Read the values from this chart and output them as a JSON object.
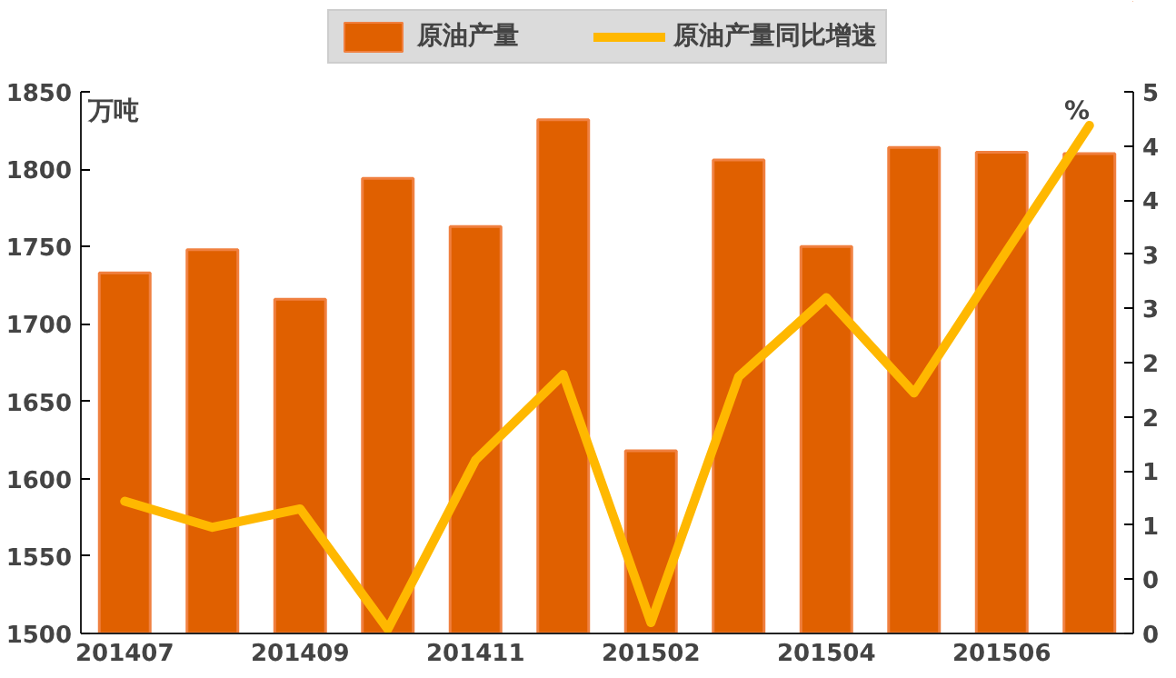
{
  "chart_data": {
    "type": "bar",
    "categories": [
      "201407",
      null,
      "201409",
      null,
      "201411",
      null,
      "201502",
      null,
      "201504",
      null,
      "201506",
      null
    ],
    "ylabel": "万吨",
    "y2label": "%",
    "series": [
      {
        "name": "原油产量",
        "color": "#e06000",
        "values": [
          1733,
          1748,
          1716,
          1794,
          1763,
          1832,
          1618,
          1806,
          1750,
          1814,
          1811,
          1810
        ]
      },
      {
        "name": "原油产量同比增速",
        "type": "line",
        "axis": "y2",
        "color": "#ffb800",
        "values": [
          1.22,
          0.98,
          1.15,
          0.04,
          1.6,
          2.39,
          0.1,
          2.37,
          3.1,
          2.22,
          3.46,
          4.69
        ]
      }
    ],
    "ylim": [
      1500,
      1850
    ],
    "yticks": [
      1500,
      1550,
      1600,
      1650,
      1700,
      1750,
      1800,
      1850
    ],
    "y2lim": [
      0,
      5
    ],
    "y2ticks": [
      0,
      {
        "value": 0.5,
        "label": "0"
      },
      1,
      {
        "value": 1.5,
        "label": "1"
      },
      2,
      {
        "value": 2.5,
        "label": "2"
      },
      3,
      {
        "value": 3.5,
        "label": "3"
      },
      4,
      {
        "value": 4.5,
        "label": "4"
      },
      5
    ],
    "grid": false,
    "legend": "top",
    "line_style": "solid",
    "marker": "none"
  }
}
